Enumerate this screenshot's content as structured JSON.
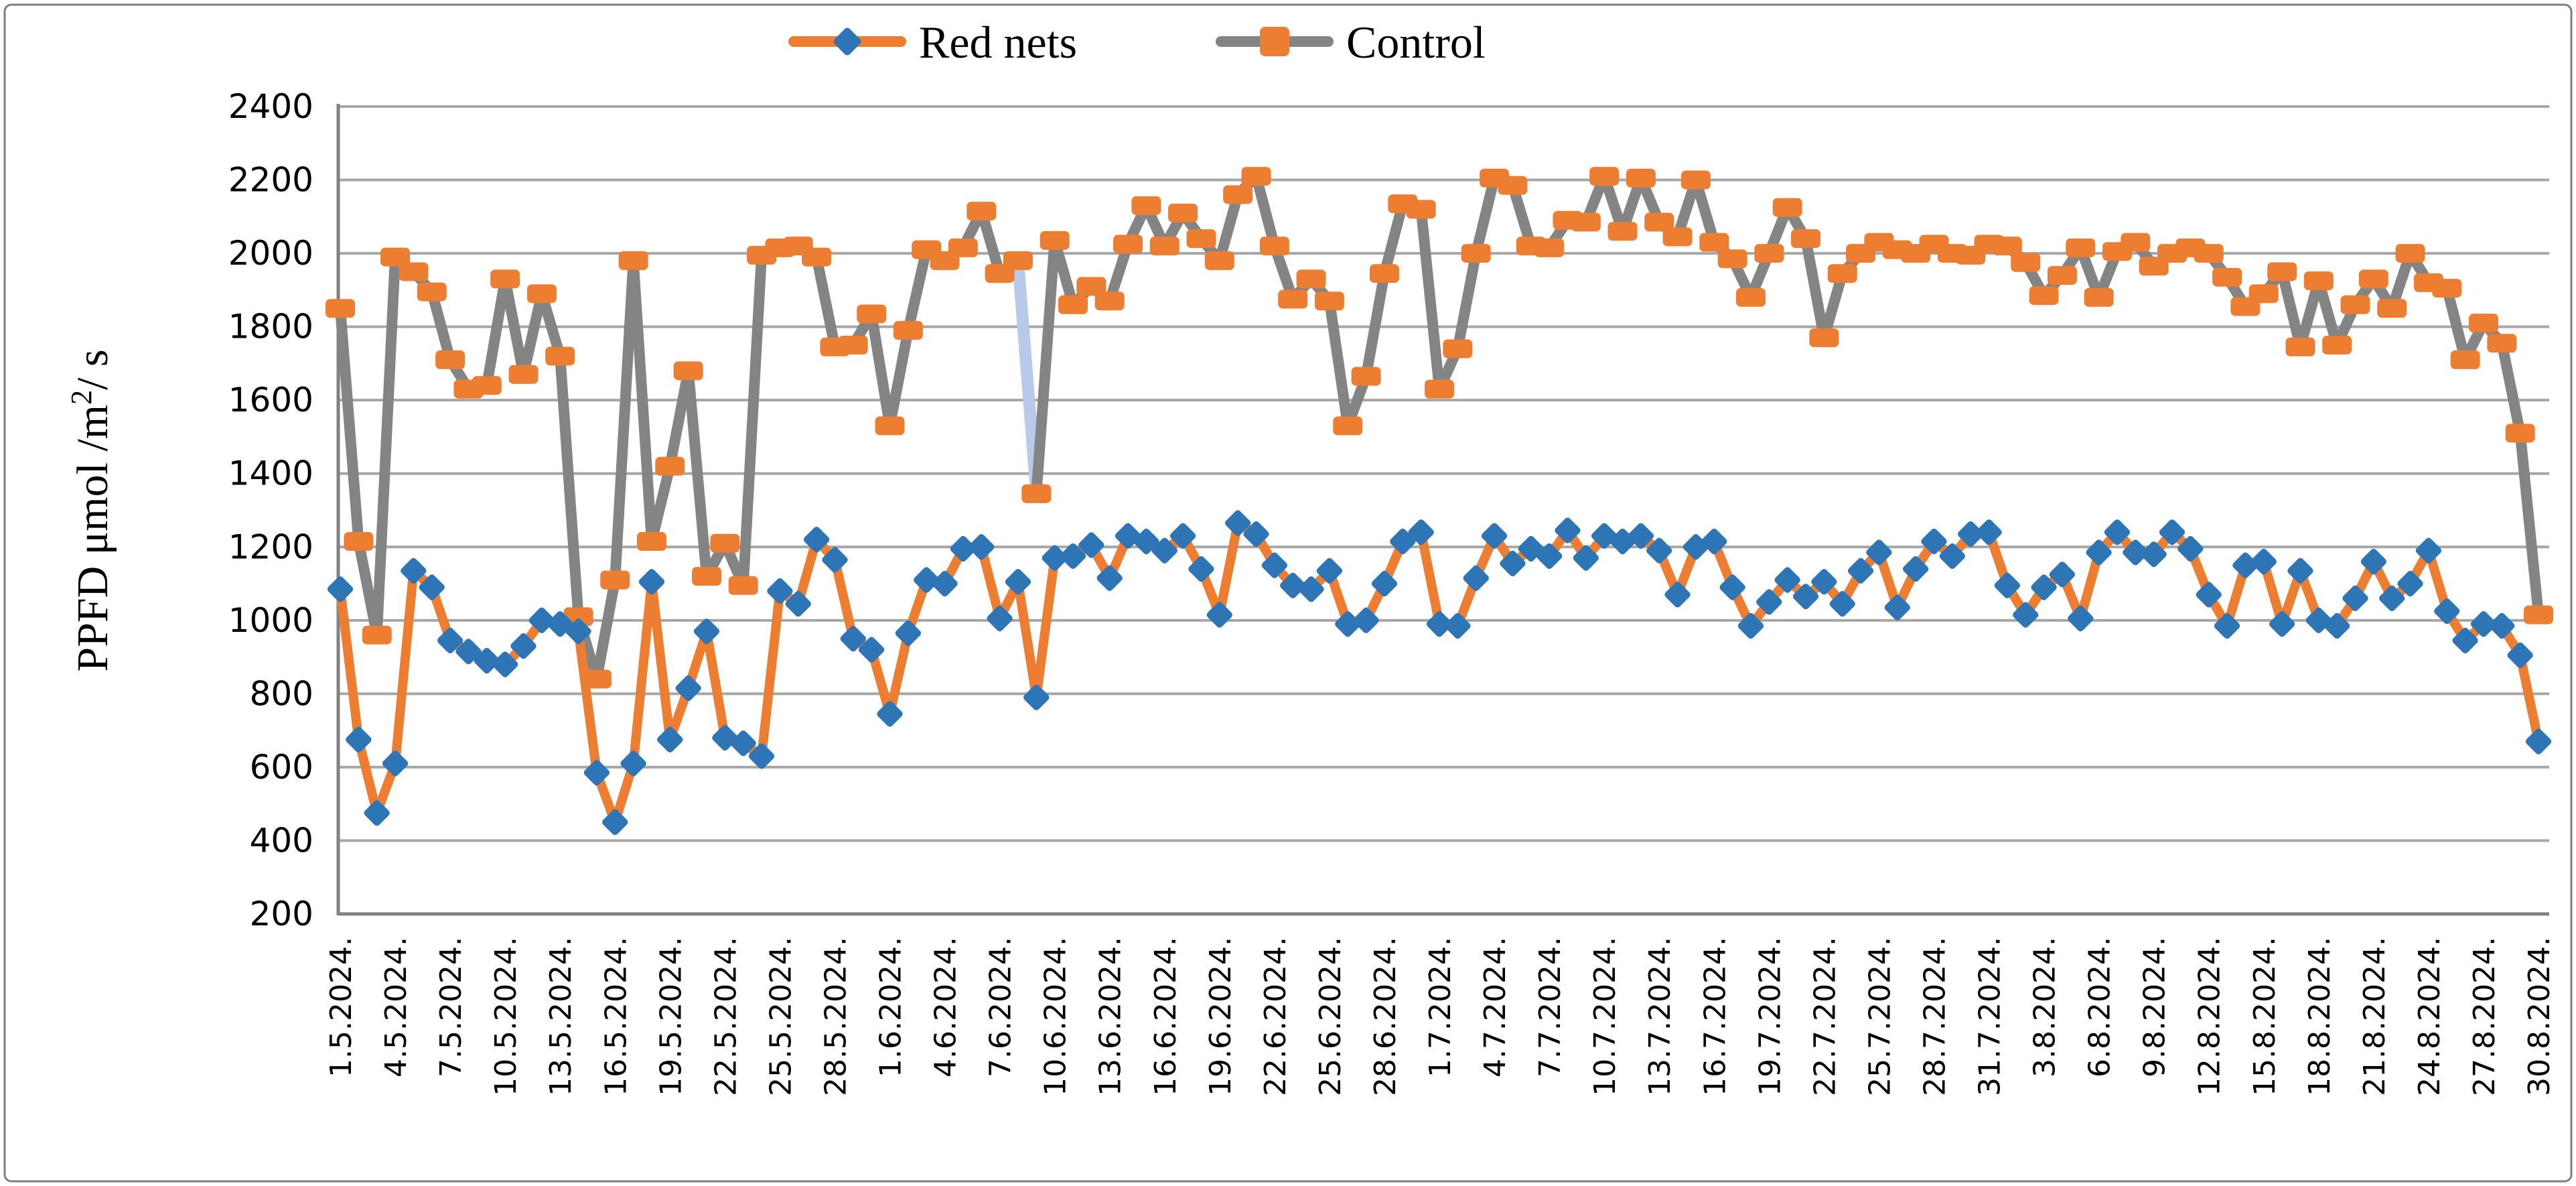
{
  "window": {
    "background": "#ffffff",
    "border_color": "#7f7f7f",
    "gridline_color": "#a6a6a6",
    "axis_color": "#808080"
  },
  "legend": {
    "items": [
      {
        "label": "Red nets",
        "line_color": "#ED7D31",
        "marker": "diamond",
        "marker_color": "#2E75B6"
      },
      {
        "label": "Control",
        "line_color": "#848484",
        "marker": "square",
        "marker_color": "#ED7D31"
      }
    ]
  },
  "y_axis": {
    "title_parts": [
      "PPFD μmol /m",
      "2",
      "/ s"
    ],
    "min": 200,
    "max": 2400,
    "step": 200
  },
  "chart_data": {
    "type": "line",
    "title": "",
    "xlabel": "",
    "ylabel": "PPFD μmol /m²/ s",
    "ylim": [
      200,
      2400
    ],
    "ytick_step": 200,
    "grid": "horizontal-only",
    "legend_position": "top-center",
    "x_tick_every_n_points": 3,
    "x_tick_labels": [
      "1.5.2024.",
      "4.5.2024.",
      "7.5.2024.",
      "10.5.2024.",
      "13.5.2024.",
      "16.5.2024.",
      "19.5.2024.",
      "22.5.2024.",
      "25.5.2024.",
      "28.5.2024.",
      "1.6.2024.",
      "4.6.2024.",
      "7.6.2024.",
      "10.6.2024.",
      "13.6.2024.",
      "16.6.2024.",
      "19.6.2024.",
      "22.6.2024.",
      "25.6.2024.",
      "28.6.2024.",
      "1.7.2024.",
      "4.7.2024.",
      "7.7.2024.",
      "10.7.2024.",
      "13.7.2024.",
      "16.7.2024.",
      "19.7.2024.",
      "22.7.2024.",
      "25.7.2024.",
      "28.7.2024.",
      "31.7.2024.",
      "3.8.2024.",
      "6.8.2024.",
      "9.8.2024.",
      "12.8.2024.",
      "15.8.2024.",
      "18.8.2024.",
      "21.8.2024.",
      "24.8.2024.",
      "27.8.2024.",
      "30.8.2024."
    ],
    "series": [
      {
        "name": "Red nets",
        "line_color": "#ED7D31",
        "marker": "diamond",
        "marker_color": "#2E75B6",
        "values": [
          1085,
          675,
          475,
          610,
          1135,
          1090,
          945,
          915,
          890,
          880,
          930,
          1000,
          990,
          970,
          585,
          450,
          610,
          1105,
          675,
          815,
          970,
          680,
          665,
          630,
          1080,
          1045,
          1220,
          1165,
          950,
          920,
          745,
          965,
          1110,
          1100,
          1195,
          1200,
          1005,
          1105,
          790,
          1170,
          1175,
          1205,
          1115,
          1230,
          1215,
          1190,
          1230,
          1140,
          1015,
          1265,
          1235,
          1150,
          1095,
          1085,
          1135,
          990,
          1000,
          1100,
          1215,
          1240,
          990,
          985,
          1115,
          1230,
          1155,
          1195,
          1175,
          1245,
          1170,
          1230,
          1215,
          1230,
          1190,
          1070,
          1200,
          1215,
          1090,
          985,
          1050,
          1110,
          1065,
          1105,
          1045,
          1135,
          1185,
          1035,
          1140,
          1215,
          1175,
          1235,
          1240,
          1095,
          1015,
          1090,
          1125,
          1005,
          1185,
          1240,
          1185,
          1180,
          1240,
          1195,
          1070,
          985,
          1150,
          1160,
          990,
          1135,
          1000,
          985,
          1060,
          1160,
          1060,
          1100,
          1190,
          1025,
          945,
          990,
          985,
          905,
          670
        ]
      },
      {
        "name": "Control",
        "line_color": "#848484",
        "marker": "square",
        "marker_color": "#ED7D31",
        "values": [
          1850,
          1215,
          960,
          1990,
          1950,
          1895,
          1710,
          1630,
          1640,
          1930,
          1670,
          1890,
          1720,
          1010,
          840,
          1110,
          1980,
          1215,
          1420,
          1680,
          1120,
          1210,
          1095,
          1995,
          2015,
          2020,
          1990,
          1745,
          1750,
          1835,
          1530,
          1790,
          2010,
          1980,
          2015,
          2115,
          1945,
          1980,
          1345,
          2035,
          1860,
          1910,
          1870,
          2025,
          2130,
          2020,
          2110,
          2040,
          1980,
          2160,
          2210,
          2020,
          1875,
          1930,
          1870,
          1530,
          1665,
          1945,
          2135,
          2120,
          1630,
          1740,
          2000,
          2205,
          2185,
          2020,
          2015,
          2090,
          2085,
          2210,
          2060,
          2205,
          2085,
          2045,
          2200,
          2030,
          1985,
          1880,
          2000,
          2125,
          2040,
          1770,
          1945,
          2000,
          2030,
          2010,
          2000,
          2025,
          2000,
          1995,
          2025,
          2020,
          1975,
          1885,
          1940,
          2015,
          1880,
          2005,
          2030,
          1965,
          2000,
          2015,
          2000,
          1935,
          1855,
          1890,
          1950,
          1745,
          1925,
          1750,
          1860,
          1930,
          1850,
          2000,
          1920,
          1905,
          1710,
          1810,
          1755,
          1510,
          1015
        ]
      }
    ],
    "highlight_segment": {
      "series": "Control",
      "from_index": 37,
      "to_index": 38,
      "color": "#B8C9EA",
      "note": "pale blue segment replacing the gray line on the descent into the 1345 dip near 10.6.2024."
    }
  }
}
